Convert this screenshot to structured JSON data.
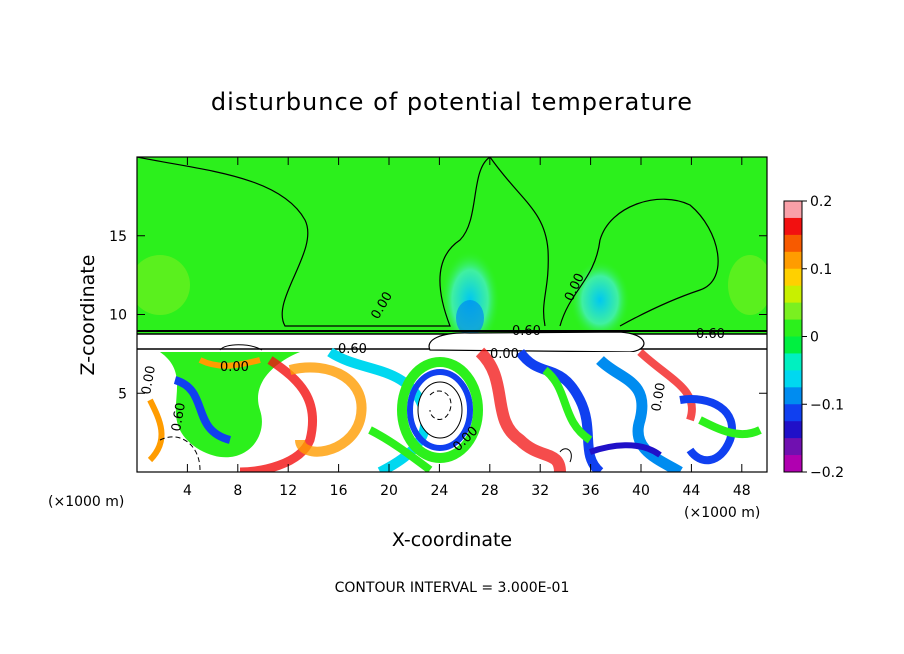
{
  "chart_data": {
    "type": "heatmap",
    "title": "disturbunce of potential temperature",
    "xlabel": "X-coordinate",
    "ylabel": "Z-coordinate",
    "x_unit_left": "(×1000 m)",
    "x_unit_right": "(×1000 m)",
    "xlim": [
      0,
      50
    ],
    "ylim": [
      0,
      20
    ],
    "x_ticks": [
      4,
      8,
      12,
      16,
      20,
      24,
      28,
      32,
      36,
      40,
      44,
      48
    ],
    "y_ticks": [
      5,
      10,
      15
    ],
    "colorbar": {
      "min": -0.2,
      "max": 0.2,
      "ticks": [
        0.2,
        0.1,
        0,
        -0.1,
        -0.2
      ],
      "tick_labels": [
        "0.2",
        "0.1",
        "0",
        "−0.1",
        "−0.2"
      ],
      "colors": [
        "#f9a0a8",
        "#f21010",
        "#f75a00",
        "#ff9c00",
        "#ffd000",
        "#c8f000",
        "#7af020",
        "#2cf01c",
        "#00f040",
        "#00f0c0",
        "#00d8f0",
        "#008cf0",
        "#1040f0",
        "#2010c8",
        "#7010b0",
        "#b000b0"
      ]
    },
    "contour_labels": [
      "0.00",
      "0.00",
      "0.00",
      "0.00",
      "0.00",
      "0.60",
      "0.60",
      "0.60",
      "0.00",
      "0.00",
      "0.60"
    ],
    "footer": "CONTOUR INTERVAL = 3.000E-01"
  }
}
